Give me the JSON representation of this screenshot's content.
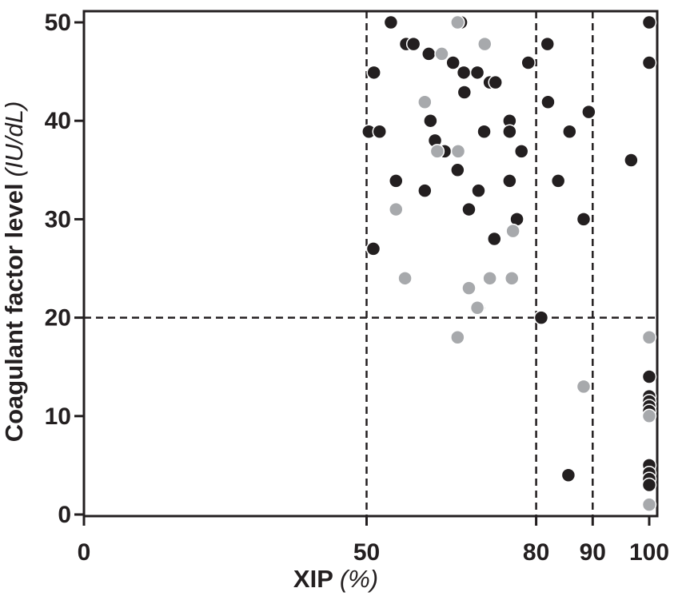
{
  "chart_data": {
    "type": "scatter",
    "title": "",
    "xlabel": "XIP",
    "xunit": "(%)",
    "ylabel": "Coagulant factor level",
    "yunit": "(IU/dL)",
    "xlim": [
      0,
      100
    ],
    "ylim": [
      0,
      50
    ],
    "xticks": [
      0,
      50,
      80,
      90,
      100
    ],
    "yticks": [
      0,
      10,
      20,
      30,
      40,
      50
    ],
    "xtick_labels": [
      "0",
      "50",
      "80",
      "90",
      "100"
    ],
    "ytick_labels": [
      "0",
      "10",
      "20",
      "30",
      "40",
      "50"
    ],
    "reference_lines": {
      "vertical": [
        50,
        80,
        90
      ],
      "horizontal": [
        20
      ]
    },
    "grid": false,
    "colors": {
      "series_black": "#231f20",
      "series_gray": "#a7a9ac",
      "axis": "#231f20"
    },
    "series": [
      {
        "color": "#231f20",
        "points": [
          [
            54.3,
            50
          ],
          [
            66.2,
            50
          ],
          [
            66.7,
            50
          ],
          [
            100,
            50
          ],
          [
            57,
            47.8
          ],
          [
            58.3,
            47.8
          ],
          [
            82,
            47.8
          ],
          [
            61,
            46.8
          ],
          [
            65.3,
            45.9
          ],
          [
            78.6,
            45.9
          ],
          [
            100,
            45.9
          ],
          [
            51.3,
            44.9
          ],
          [
            67.2,
            44.9
          ],
          [
            69.6,
            44.9
          ],
          [
            71.8,
            43.9
          ],
          [
            72.8,
            43.9
          ],
          [
            67.3,
            42.9
          ],
          [
            82.1,
            41.9
          ],
          [
            89.3,
            40.9
          ],
          [
            61.3,
            40
          ],
          [
            75.3,
            40
          ],
          [
            50.4,
            38.9
          ],
          [
            52.3,
            38.9
          ],
          [
            70.8,
            38.9
          ],
          [
            75.3,
            38.9
          ],
          [
            85.9,
            38.9
          ],
          [
            62.1,
            38
          ],
          [
            77.4,
            36.9
          ],
          [
            63.8,
            36.9
          ],
          [
            96.8,
            36
          ],
          [
            66.1,
            35
          ],
          [
            55.2,
            33.9
          ],
          [
            75.3,
            33.9
          ],
          [
            83.9,
            33.9
          ],
          [
            60.3,
            32.9
          ],
          [
            69.8,
            32.9
          ],
          [
            68.1,
            31
          ],
          [
            76.6,
            30
          ],
          [
            88.4,
            30
          ],
          [
            72.6,
            28
          ],
          [
            51.2,
            27
          ],
          [
            69.8,
            21
          ],
          [
            80.9,
            20
          ],
          [
            100,
            14
          ],
          [
            100,
            12
          ],
          [
            100,
            11.5
          ],
          [
            100,
            11
          ],
          [
            100,
            10.5
          ],
          [
            85.7,
            4
          ],
          [
            100,
            5
          ],
          [
            100,
            4.2
          ],
          [
            100,
            3.6
          ],
          [
            100,
            3
          ]
        ]
      },
      {
        "color": "#a7a9ac",
        "points": [
          [
            66.1,
            50
          ],
          [
            70.9,
            47.8
          ],
          [
            63.3,
            46.8
          ],
          [
            60.3,
            41.9
          ],
          [
            62.5,
            36.9
          ],
          [
            66.2,
            36.9
          ],
          [
            55.2,
            31
          ],
          [
            75.9,
            28.8
          ],
          [
            56.8,
            24
          ],
          [
            71.8,
            24
          ],
          [
            75.7,
            24
          ],
          [
            68.1,
            23
          ],
          [
            69.6,
            21
          ],
          [
            66.1,
            18
          ],
          [
            88.4,
            13
          ],
          [
            100,
            18
          ],
          [
            100,
            10
          ],
          [
            100,
            1
          ]
        ]
      }
    ]
  }
}
